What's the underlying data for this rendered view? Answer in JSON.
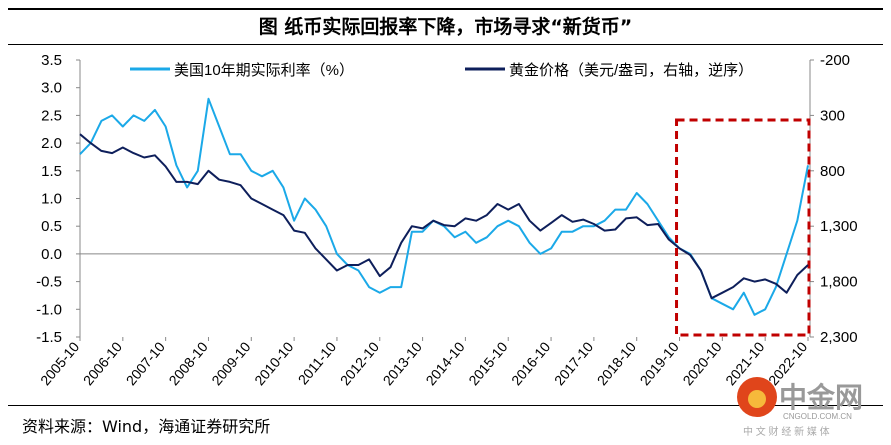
{
  "title": "图  纸币实际回报率下降，市场寻求“新货币”",
  "source": "资料来源：Wind，海通证券研究所",
  "watermark": {
    "name": "中金网",
    "url_text": "CNGOLD.COM.CN",
    "tagline": "中 文 财 经 新 媒 体"
  },
  "chart_data": {
    "type": "line",
    "title": "",
    "x_tick_labels": [
      "2005-10",
      "2006-10",
      "2007-10",
      "2008-10",
      "2009-10",
      "2010-10",
      "2011-10",
      "2012-10",
      "2013-10",
      "2014-10",
      "2015-10",
      "2016-10",
      "2017-10",
      "2018-10",
      "2019-10",
      "2020-10",
      "2021-10",
      "2022-10"
    ],
    "x": [
      "2005-10",
      "2006-01",
      "2006-04",
      "2006-07",
      "2006-10",
      "2007-01",
      "2007-04",
      "2007-07",
      "2007-10",
      "2008-01",
      "2008-04",
      "2008-07",
      "2008-10",
      "2009-01",
      "2009-04",
      "2009-07",
      "2009-10",
      "2010-01",
      "2010-04",
      "2010-07",
      "2010-10",
      "2011-01",
      "2011-04",
      "2011-07",
      "2011-10",
      "2012-01",
      "2012-04",
      "2012-07",
      "2012-10",
      "2013-01",
      "2013-04",
      "2013-07",
      "2013-10",
      "2014-01",
      "2014-04",
      "2014-07",
      "2014-10",
      "2015-01",
      "2015-04",
      "2015-07",
      "2015-10",
      "2016-01",
      "2016-04",
      "2016-07",
      "2016-10",
      "2017-01",
      "2017-04",
      "2017-07",
      "2017-10",
      "2018-01",
      "2018-04",
      "2018-07",
      "2018-10",
      "2019-01",
      "2019-04",
      "2019-07",
      "2019-10",
      "2020-01",
      "2020-04",
      "2020-07",
      "2020-10",
      "2021-01",
      "2021-04",
      "2021-07",
      "2021-10",
      "2022-01",
      "2022-04",
      "2022-07",
      "2022-10"
    ],
    "series": [
      {
        "name": "美国10年期实际利率（%）",
        "axis": "left",
        "color": "#1BA9E8",
        "values": [
          1.8,
          2.0,
          2.4,
          2.5,
          2.3,
          2.5,
          2.4,
          2.6,
          2.3,
          1.6,
          1.2,
          1.5,
          2.8,
          2.3,
          1.8,
          1.8,
          1.5,
          1.4,
          1.5,
          1.2,
          0.6,
          1.0,
          0.8,
          0.5,
          0.0,
          -0.2,
          -0.3,
          -0.6,
          -0.7,
          -0.6,
          -0.6,
          0.4,
          0.4,
          0.6,
          0.5,
          0.3,
          0.4,
          0.2,
          0.3,
          0.5,
          0.6,
          0.5,
          0.2,
          0.0,
          0.1,
          0.4,
          0.4,
          0.5,
          0.5,
          0.6,
          0.8,
          0.8,
          1.1,
          0.9,
          0.6,
          0.3,
          0.1,
          0.0,
          -0.3,
          -0.8,
          -0.9,
          -1.0,
          -0.7,
          -1.1,
          -1.0,
          -0.6,
          0.0,
          0.6,
          1.6
        ]
      },
      {
        "name": "黄金价格（美元/盎司，右轴，逆序）",
        "axis": "right",
        "color": "#0E1F5B",
        "values": [
          470,
          550,
          620,
          640,
          590,
          640,
          680,
          660,
          760,
          900,
          900,
          920,
          800,
          880,
          900,
          930,
          1050,
          1100,
          1150,
          1200,
          1340,
          1360,
          1500,
          1600,
          1700,
          1650,
          1650,
          1600,
          1750,
          1670,
          1450,
          1300,
          1320,
          1250,
          1290,
          1300,
          1230,
          1250,
          1200,
          1100,
          1150,
          1100,
          1250,
          1340,
          1270,
          1200,
          1260,
          1240,
          1280,
          1340,
          1330,
          1230,
          1220,
          1290,
          1280,
          1420,
          1500,
          1560,
          1700,
          1950,
          1900,
          1850,
          1770,
          1800,
          1780,
          1820,
          1900,
          1740,
          1650
        ]
      }
    ],
    "y_left": {
      "range": [
        -1.5,
        3.5
      ],
      "tick_labels": [
        "3.5",
        "3.0",
        "2.5",
        "2.0",
        "1.5",
        "1.0",
        "0.5",
        "0.0",
        "-0.5",
        "-1.0",
        "-1.5"
      ]
    },
    "y_right": {
      "range": [
        -200,
        2300
      ],
      "inverted": true,
      "tick_labels": [
        "-200",
        "300",
        "800",
        "1,300",
        "1,800",
        "2,300"
      ]
    },
    "legend_placement": "top",
    "grid": false,
    "highlight_box": {
      "from": "2019-10",
      "to": "2022-10",
      "color": "#C00000",
      "style": "dashed"
    }
  }
}
